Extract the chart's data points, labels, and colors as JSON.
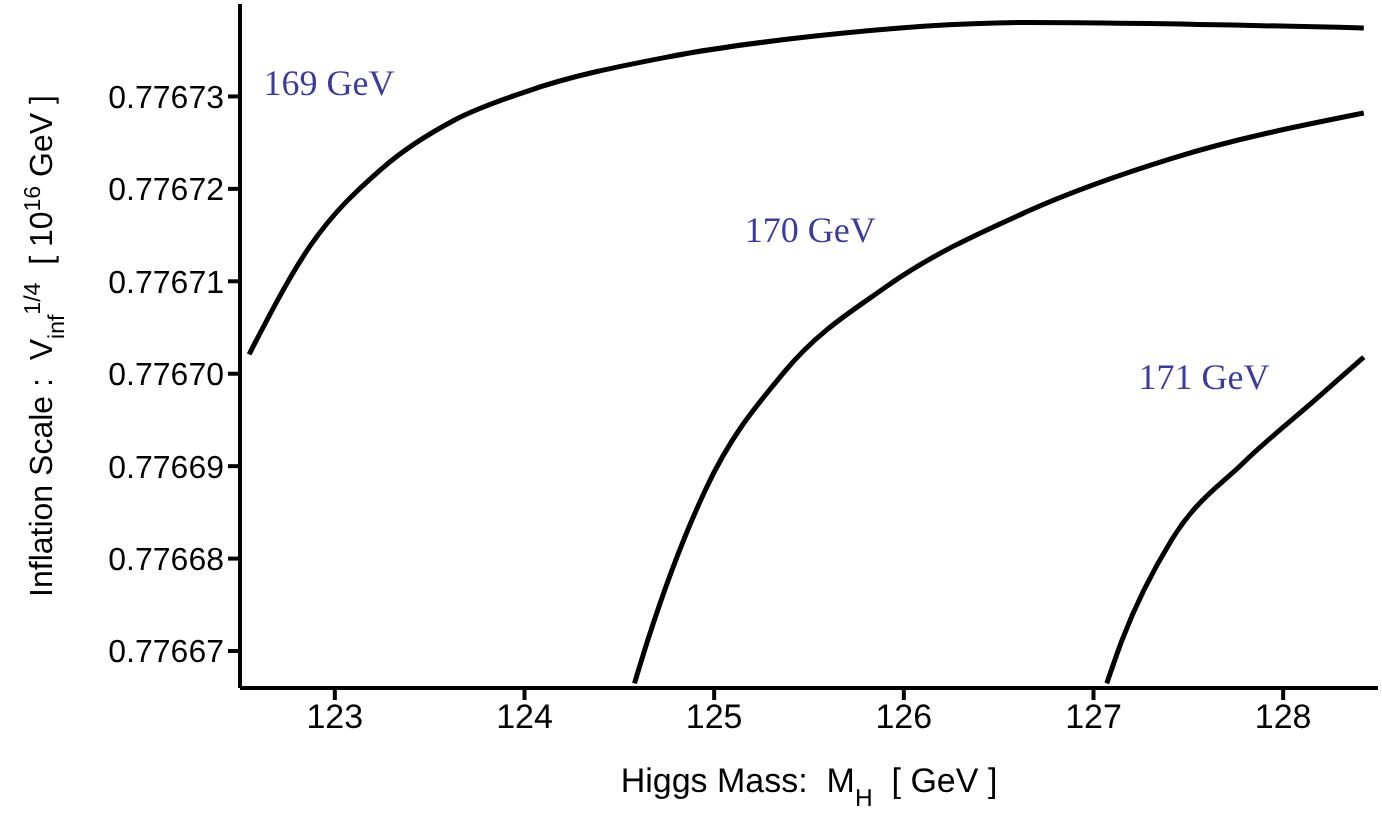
{
  "chart_data": {
    "type": "line",
    "xlabel": "Higgs Mass:  M$_{H}$  [ GeV ]",
    "ylabel": "Inflation Scale :  V$_{inf}$$^{1/4}$  [ 10$^{16}$ GeV ]",
    "xlim": [
      122.5,
      128.5
    ],
    "ylim": [
      0.776666,
      0.77674
    ],
    "xticks": [
      123,
      124,
      125,
      126,
      127,
      128
    ],
    "yticks": [
      0.77667,
      0.77668,
      0.77669,
      {
        "value": 0.7767,
        "label": "0.77670"
      },
      0.77671,
      0.77672,
      0.77673
    ],
    "grid": false,
    "legend": false,
    "marker": "none",
    "line_style": "solid",
    "series": [
      {
        "name": "169 GeV",
        "color": "#000000",
        "x": [
          122.548,
          122.869,
          123.248,
          123.627,
          124.005,
          124.763,
          125.52,
          126.656,
          128.425
        ],
        "values": [
          0.7767021,
          0.7767138,
          0.7767222,
          0.7767274,
          0.7767305,
          0.7767343,
          0.7767365,
          0.776738,
          0.7767374
        ]
      },
      {
        "name": "170 GeV",
        "color": "#000000",
        "x": [
          124.58,
          124.649,
          124.953,
          125.37,
          125.899,
          126.656,
          127.414,
          128.425
        ],
        "values": [
          0.7766665,
          0.7766711,
          0.7766874,
          0.7767002,
          0.7767093,
          0.7767176,
          0.7767233,
          0.7767282
        ]
      },
      {
        "name": "171 GeV",
        "color": "#000000",
        "x": [
          127.07,
          127.149,
          127.414,
          127.792,
          128.17,
          128.425
        ],
        "values": [
          0.7766665,
          0.7766711,
          0.7766821,
          0.7766904,
          0.7766972,
          0.7767018
        ]
      }
    ]
  }
}
